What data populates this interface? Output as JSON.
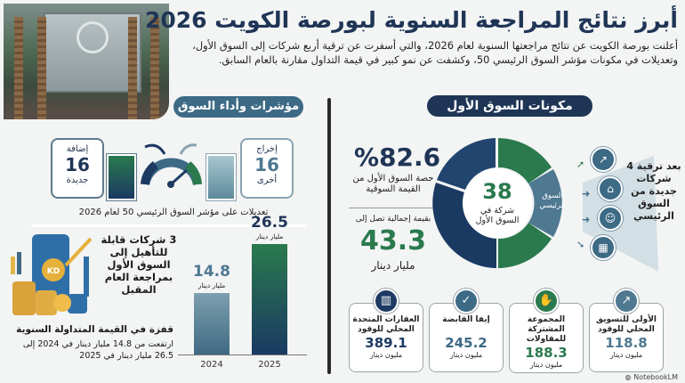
{
  "header": {
    "title": "أبرز نتائج المراجعة السنوية لبورصة الكويت 2026",
    "intro": "أعلنت بورصة الكويت عن نتائج مراجعتها السنوية لعام 2026، والتي أسفرت عن ترقية أربع شركات إلى السوق الأول، وتعديلات في مكونات مؤشر السوق الرئيسي 50، وكشفت عن نمو كبير في قيمة التداول مقارنة بالعام السابق."
  },
  "first_market": {
    "heading": "مكونات السوق الأول",
    "share_value": "%82.6",
    "share_label": "حصة السوق الأول من القيمة السوقية",
    "total_prefix": "بقيمة إجمالية تصل إلى",
    "total_value": "43.3",
    "total_unit": "مليار دينار",
    "center_count": "38",
    "center_label": "شركة في السوق الأول",
    "main_market_label": "السوق الرئيسي",
    "upgrade_note": "بعد ترقية 4 شركات جديدة من السوق الرئيسي",
    "colors": {
      "navy": "#1d3a63",
      "green": "#2a7a4e",
      "slate": "#4f7891"
    }
  },
  "indicators": {
    "heading": "مؤشرات وأداء السوق",
    "add_label": "إضافة",
    "add_value": "16",
    "add_sub": "جديدة",
    "remove_label": "إخراج",
    "remove_value": "16",
    "remove_sub": "أخرى",
    "caption": "تعديلات على مؤشر السوق الرئيسي 50 لعام 2026"
  },
  "qualify": {
    "text": "3 شركات قابلة للتأهيل إلى السوق الأول بمراجعة العام المقبل",
    "coin_label": "KD"
  },
  "trading": {
    "title": "قفزة في القيمة المتداولة السنوية",
    "desc": "ارتفعت من 14.8 مليار دينار في 2024 إلى 26.5 مليار دينار في 2025"
  },
  "chart_data": {
    "type": "bar",
    "categories": [
      "2024",
      "2025"
    ],
    "values": [
      14.8,
      26.5
    ],
    "value_labels": [
      "14.8",
      "26.5"
    ],
    "unit": "مليار دينار",
    "ylim": [
      0,
      30
    ]
  },
  "companies": [
    {
      "name": "العقارات المتحدة المحلي للوقود",
      "value": "389.1",
      "unit": "مليون دينار",
      "icon": "building-icon",
      "color": "#1d3a63"
    },
    {
      "name": "إيفا القابضة",
      "value": "245.2",
      "unit": "مليون دينار",
      "icon": "hands-icon",
      "color": "#3d6a85"
    },
    {
      "name": "المجموعة المشتركة للمقاولات",
      "value": "188.3",
      "unit": "مليون دينار",
      "icon": "handshake-icon",
      "color": "#2a7a4e"
    },
    {
      "name": "الأولى للتسويق المحلي للوقود",
      "value": "118.8",
      "unit": "مليون دينار",
      "icon": "chart-icon",
      "color": "#4f7891"
    }
  ],
  "footer": {
    "brand": "NotebookLM"
  }
}
